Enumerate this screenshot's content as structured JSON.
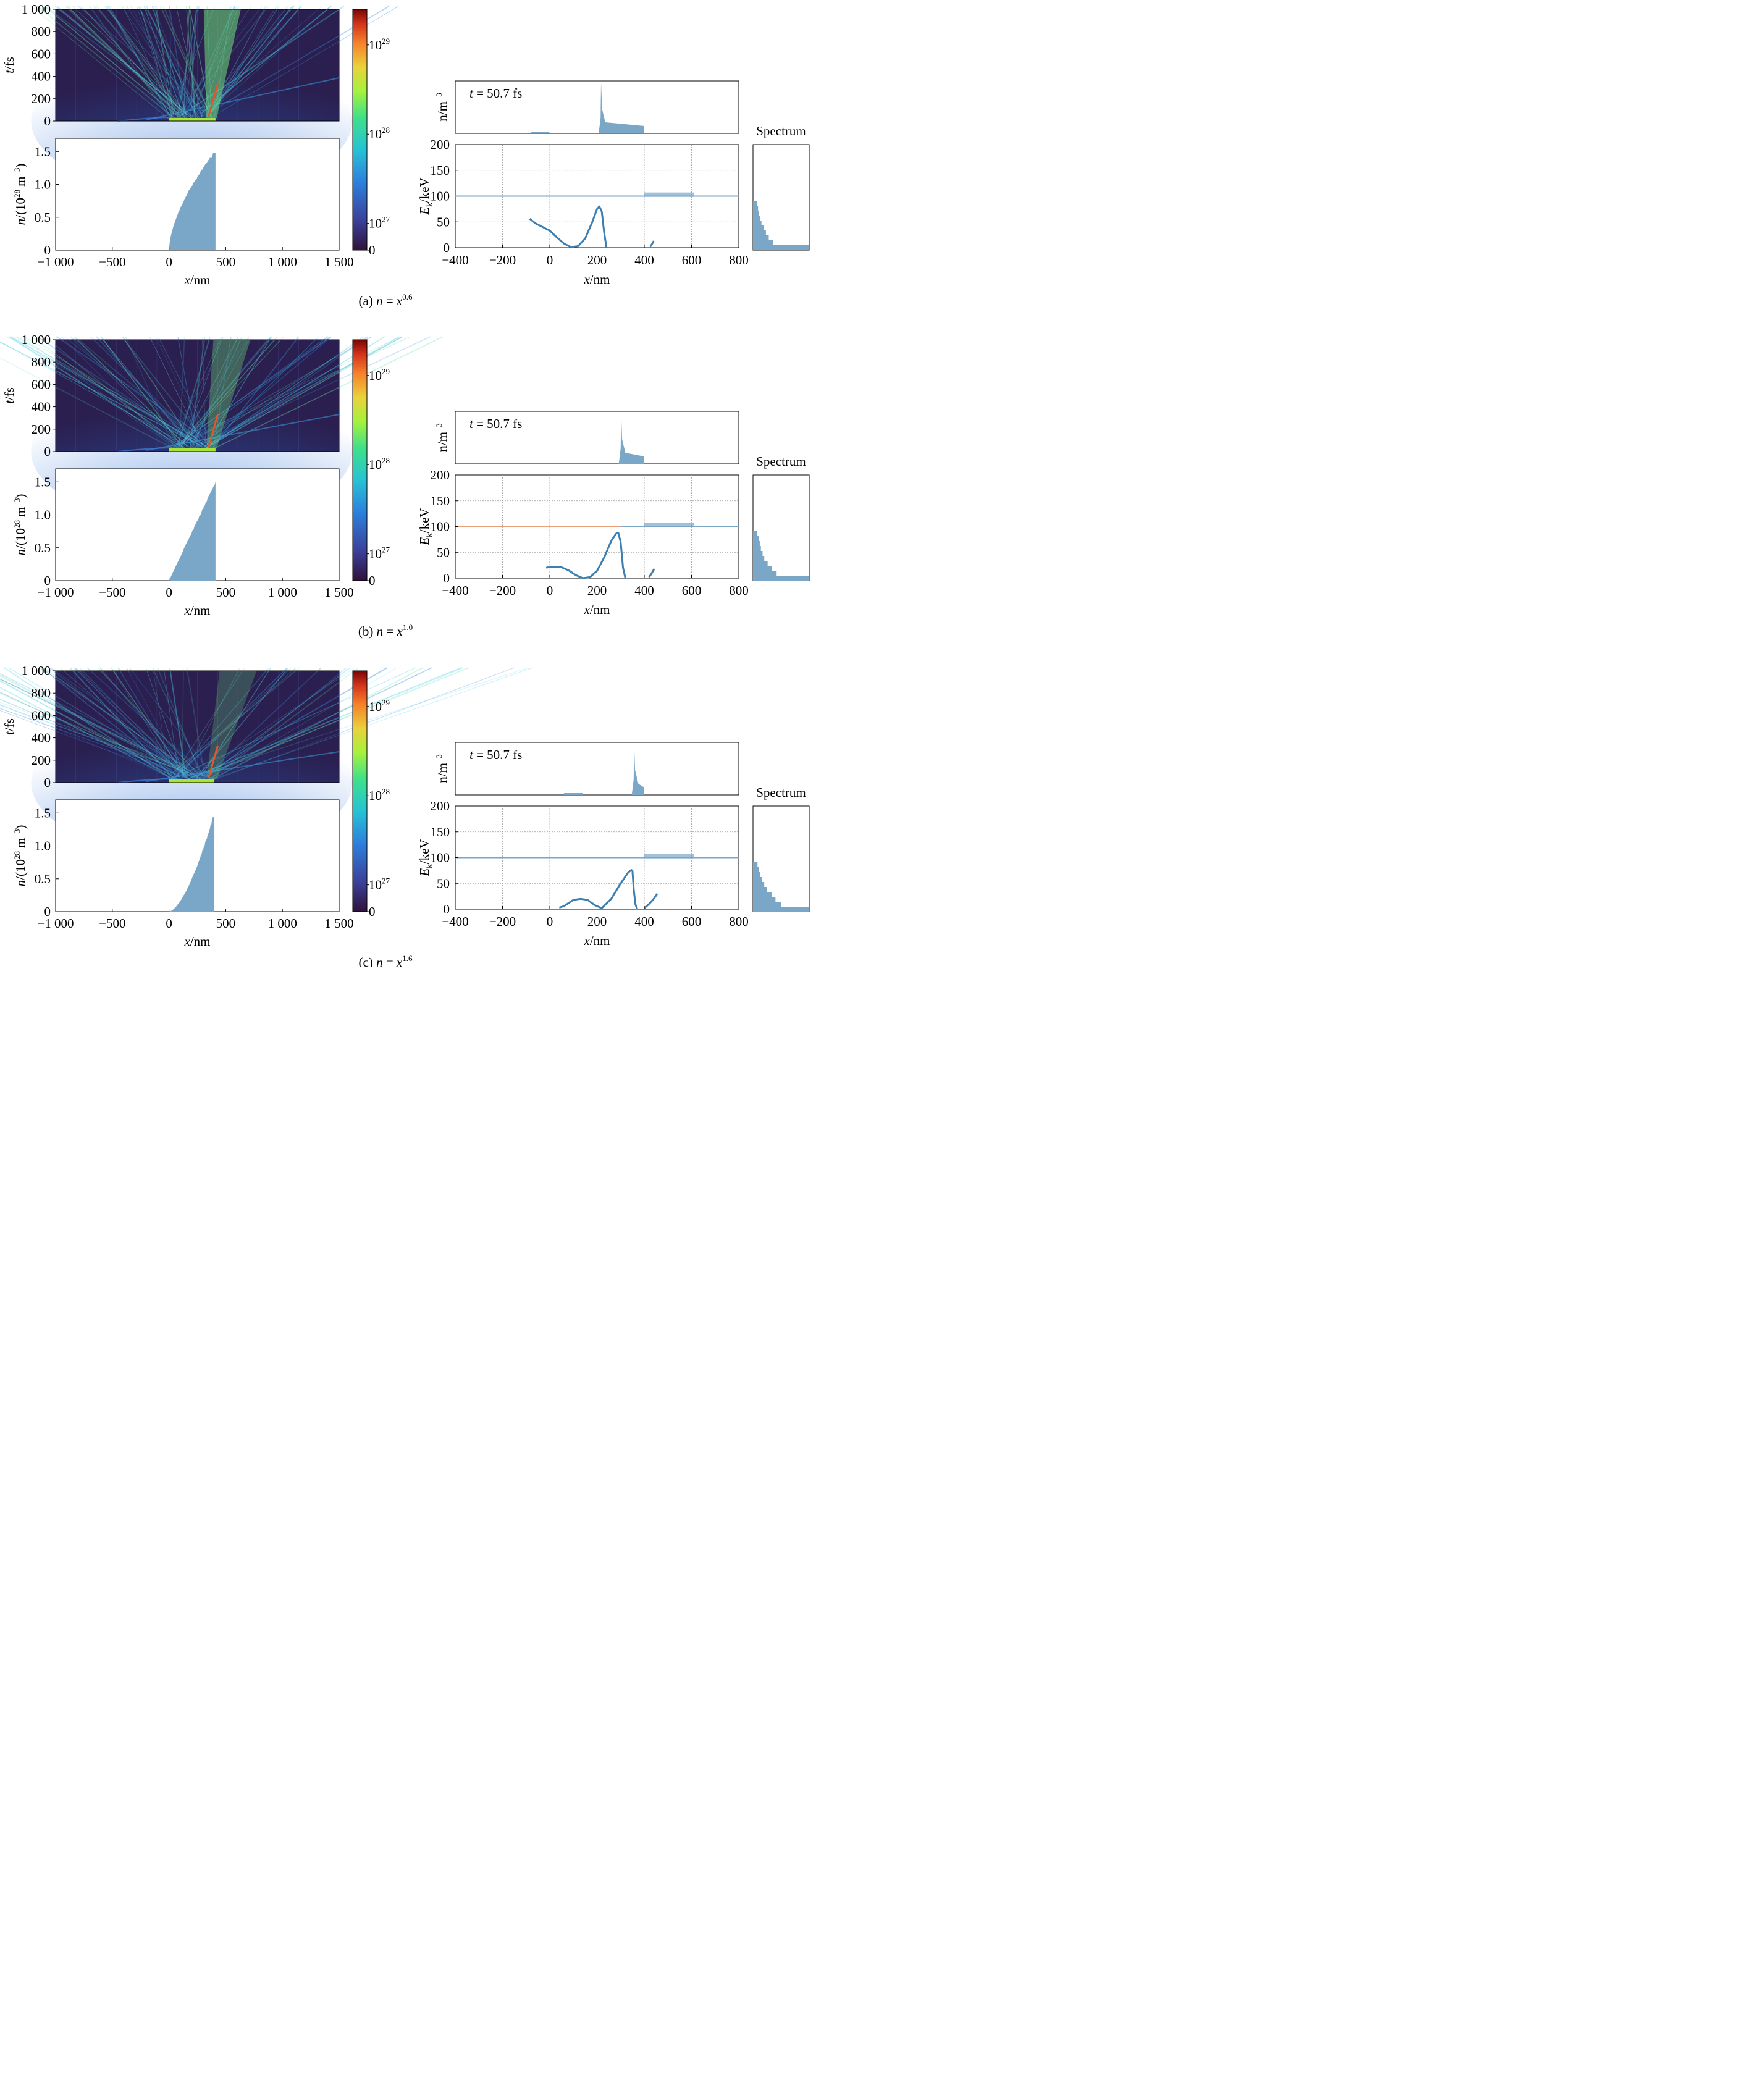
{
  "colorbar_ticks": [
    {
      "base": "10",
      "exp": "29",
      "v": 29
    },
    {
      "base": "10",
      "exp": "28",
      "v": 28
    },
    {
      "base": "10",
      "exp": "27",
      "v": 27
    },
    {
      "base": "0",
      "exp": "",
      "v": 26.7
    }
  ],
  "colors": {
    "fill": "#7aa6c8",
    "line": "#3d7fb0",
    "orange": "#e8a07a",
    "grid": "#9a9a9a"
  },
  "chart_data": [
    {
      "type": "heatmap",
      "caption": {
        "pre": "(a) ",
        "var": "n",
        "eq": " = ",
        "base": "x",
        "exp": "0.6"
      },
      "heatmap": {
        "ylabel_var": "t",
        "ylabel_unit": "/fs",
        "yticks": [
          "0",
          "200",
          "400",
          "600",
          "800",
          "1 000"
        ],
        "xlim": [
          -1000,
          1500
        ],
        "ylim": [
          0,
          1000
        ]
      },
      "density": {
        "type": "area",
        "exponent": 0.6,
        "x_range": [
          0,
          410
        ],
        "peak": 1.5,
        "ylim": [
          0,
          1.7
        ],
        "yticks": [
          "0",
          "0.5",
          "1.0",
          "1.5"
        ],
        "xticks": [
          "−1 000",
          "−500",
          "0",
          "500",
          "1 000",
          "1 500"
        ],
        "xlabel_var": "x",
        "xlabel_unit": "/nm"
      },
      "snapshot": {
        "label": {
          "var": "t",
          "rest": " = 50.7 fs"
        },
        "ylabel": "n/m",
        "ylabel_exp": "−3",
        "spike_x": 215,
        "plateau": [
          215,
          400
        ]
      },
      "energy": {
        "type": "line",
        "ylabel_var": "E",
        "ylabel_sub": "k",
        "ylabel_unit": "/keV",
        "yticks": [
          "0",
          "50",
          "100",
          "150",
          "200"
        ],
        "xticks": [
          "−400",
          "−200",
          "0",
          "200",
          "400",
          "600",
          "800"
        ],
        "xlim": [
          -400,
          800
        ],
        "ylim": [
          0,
          200
        ],
        "xlabel_var": "x",
        "xlabel_unit": "/nm",
        "curve_x": [
          -85,
          -60,
          -30,
          0,
          30,
          60,
          90,
          120,
          150,
          180,
          200,
          210,
          220,
          230,
          240
        ],
        "curve_y": [
          56,
          47,
          40,
          33,
          20,
          8,
          1,
          3,
          18,
          50,
          75,
          80,
          70,
          30,
          0
        ],
        "tail_x": [
          425,
          430,
          435,
          440
        ],
        "tail_y": [
          2,
          5,
          9,
          13
        ]
      },
      "spectrum": {
        "title": "Spectrum",
        "bins": [
          0.07,
          0.09,
          0.11,
          0.13,
          0.15,
          0.19,
          0.23,
          0.28,
          0.36,
          1.0
        ]
      }
    },
    {
      "type": "heatmap",
      "caption": {
        "pre": "(b) ",
        "var": "n",
        "eq": " = ",
        "base": "x",
        "exp": "1.0"
      },
      "heatmap": {
        "ylabel_var": "t",
        "ylabel_unit": "/fs",
        "yticks": [
          "0",
          "200",
          "400",
          "600",
          "800",
          "1 000"
        ],
        "xlim": [
          -1000,
          1500
        ],
        "ylim": [
          0,
          1000
        ]
      },
      "density": {
        "type": "area",
        "exponent": 1.0,
        "x_range": [
          0,
          410
        ],
        "peak": 1.5,
        "ylim": [
          0,
          1.7
        ],
        "yticks": [
          "0",
          "0.5",
          "1.0",
          "1.5"
        ],
        "xticks": [
          "−1 000",
          "−500",
          "0",
          "500",
          "1 000",
          "1 500"
        ],
        "xlabel_var": "x",
        "xlabel_unit": "/nm"
      },
      "snapshot": {
        "label": {
          "var": "t",
          "rest": " = 50.7 fs"
        },
        "ylabel": "n/m",
        "ylabel_exp": "−3",
        "spike_x": 300,
        "plateau": [
          300,
          400
        ]
      },
      "energy": {
        "type": "line",
        "ylabel_var": "E",
        "ylabel_sub": "k",
        "ylabel_unit": "/keV",
        "yticks": [
          "0",
          "50",
          "100",
          "150",
          "200"
        ],
        "xticks": [
          "−400",
          "−200",
          "0",
          "200",
          "400",
          "600",
          "800"
        ],
        "xlim": [
          -400,
          800
        ],
        "ylim": [
          0,
          200
        ],
        "xlabel_var": "x",
        "xlabel_unit": "/nm",
        "curve_x": [
          -15,
          0,
          20,
          50,
          80,
          110,
          140,
          170,
          200,
          230,
          260,
          280,
          290,
          300,
          310,
          320
        ],
        "curve_y": [
          20,
          22,
          22,
          21,
          15,
          6,
          0,
          2,
          14,
          40,
          72,
          86,
          88,
          70,
          20,
          0
        ],
        "tail_x": [
          420,
          428,
          436,
          442
        ],
        "tail_y": [
          2,
          7,
          13,
          18
        ]
      },
      "spectrum": {
        "title": "Spectrum",
        "bins": [
          0.07,
          0.1,
          0.12,
          0.14,
          0.17,
          0.2,
          0.26,
          0.33,
          0.42,
          1.0
        ]
      }
    },
    {
      "type": "heatmap",
      "caption": {
        "pre": "(c) ",
        "var": "n",
        "eq": " = ",
        "base": "x",
        "exp": "1.6"
      },
      "heatmap": {
        "ylabel_var": "t",
        "ylabel_unit": "/fs",
        "yticks": [
          "0",
          "200",
          "400",
          "600",
          "800",
          "1 000"
        ],
        "xlim": [
          -1000,
          1500
        ],
        "ylim": [
          0,
          1000
        ]
      },
      "density": {
        "type": "area",
        "exponent": 1.6,
        "x_range": [
          0,
          400
        ],
        "peak": 1.5,
        "ylim": [
          0,
          1.7
        ],
        "yticks": [
          "0",
          "0.5",
          "1.0",
          "1.5"
        ],
        "xticks": [
          "−1 000",
          "−500",
          "0",
          "500",
          "1 000",
          "1 500"
        ],
        "xlabel_var": "x",
        "xlabel_unit": "/nm"
      },
      "snapshot": {
        "label": {
          "var": "t",
          "rest": " = 50.7 fs"
        },
        "ylabel": "n/m",
        "ylabel_exp": "−3",
        "spike_x": 355,
        "plateau": [
          355,
          400
        ]
      },
      "energy": {
        "type": "line",
        "ylabel_var": "E",
        "ylabel_sub": "k",
        "ylabel_unit": "/keV",
        "yticks": [
          "0",
          "50",
          "100",
          "150",
          "200"
        ],
        "xticks": [
          "−400",
          "−200",
          "0",
          "200",
          "400",
          "600",
          "800"
        ],
        "xlim": [
          -400,
          800
        ],
        "ylim": [
          0,
          200
        ],
        "xlabel_var": "x",
        "xlabel_unit": "/nm",
        "curve_x": [
          40,
          60,
          80,
          100,
          130,
          160,
          190,
          220,
          260,
          300,
          330,
          345,
          350,
          355,
          362,
          370
        ],
        "curve_y": [
          3,
          6,
          12,
          18,
          20,
          18,
          8,
          2,
          20,
          50,
          70,
          76,
          74,
          40,
          10,
          0
        ],
        "tail_x": [
          400,
          420,
          440,
          455
        ],
        "tail_y": [
          2,
          10,
          20,
          30
        ]
      },
      "spectrum": {
        "title": "Spectrum",
        "bins": [
          0.08,
          0.1,
          0.13,
          0.16,
          0.2,
          0.25,
          0.33,
          0.4,
          0.5,
          1.0
        ]
      }
    }
  ]
}
